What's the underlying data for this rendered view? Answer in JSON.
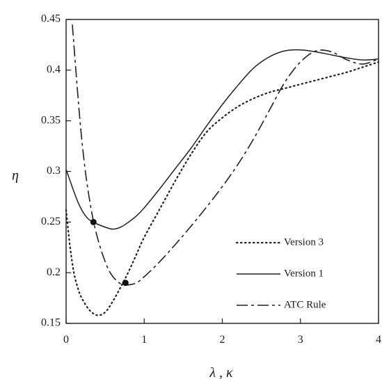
{
  "chart_data": {
    "type": "line",
    "title": "",
    "xlabel": "λ , κ",
    "ylabel": "η",
    "xlim": [
      0,
      4
    ],
    "ylim": [
      0.15,
      0.45
    ],
    "xticks": [
      0,
      1,
      2,
      3,
      4
    ],
    "yticks": [
      0.15,
      0.2,
      0.25,
      0.3,
      0.35,
      0.4,
      0.45
    ],
    "xtick_labels": [
      "0",
      "1",
      "2",
      "3",
      "4"
    ],
    "ytick_labels": [
      "0.15",
      "0.2",
      "0.25",
      "0.3",
      "0.35",
      "0.4",
      "0.45"
    ],
    "grid": false,
    "legend_position": "bottom-right",
    "series": [
      {
        "name": "Version 3",
        "style": "dotted",
        "x": [
          0.0,
          0.05,
          0.1,
          0.15,
          0.2,
          0.3,
          0.4,
          0.5,
          0.6,
          0.7,
          0.8,
          0.9,
          1.0,
          1.2,
          1.4,
          1.6,
          1.8,
          2.0,
          2.2,
          2.4,
          2.6,
          2.8,
          3.0,
          3.2,
          3.4,
          3.6,
          3.8,
          4.0
        ],
        "values": [
          0.262,
          0.226,
          0.2,
          0.185,
          0.175,
          0.163,
          0.158,
          0.161,
          0.172,
          0.186,
          0.201,
          0.218,
          0.235,
          0.263,
          0.291,
          0.317,
          0.339,
          0.353,
          0.364,
          0.372,
          0.378,
          0.382,
          0.386,
          0.39,
          0.394,
          0.398,
          0.403,
          0.408
        ]
      },
      {
        "name": "Version 1",
        "style": "solid",
        "x": [
          0.0,
          0.05,
          0.1,
          0.15,
          0.2,
          0.25,
          0.3,
          0.35,
          0.4,
          0.5,
          0.6,
          0.7,
          0.8,
          0.9,
          1.0,
          1.2,
          1.4,
          1.6,
          1.8,
          2.0,
          2.2,
          2.4,
          2.6,
          2.8,
          3.0,
          3.2,
          3.4,
          3.6,
          3.8,
          4.0
        ],
        "values": [
          0.302,
          0.291,
          0.28,
          0.27,
          0.262,
          0.256,
          0.252,
          0.25,
          0.248,
          0.245,
          0.243,
          0.245,
          0.25,
          0.256,
          0.264,
          0.283,
          0.303,
          0.323,
          0.345,
          0.366,
          0.385,
          0.402,
          0.413,
          0.419,
          0.42,
          0.418,
          0.415,
          0.412,
          0.41,
          0.411
        ]
      },
      {
        "name": "ATC Rule",
        "style": "dashed",
        "x": [
          0.08,
          0.12,
          0.16,
          0.2,
          0.25,
          0.3,
          0.35,
          0.4,
          0.45,
          0.5,
          0.55,
          0.6,
          0.65,
          0.7,
          0.75,
          0.8,
          0.9,
          1.0,
          1.2,
          1.4,
          1.6,
          1.8,
          2.0,
          2.2,
          2.4,
          2.6,
          2.8,
          3.0,
          3.2,
          3.4,
          3.6,
          3.8,
          4.0
        ],
        "values": [
          0.445,
          0.405,
          0.366,
          0.332,
          0.298,
          0.272,
          0.251,
          0.235,
          0.222,
          0.211,
          0.202,
          0.196,
          0.192,
          0.189,
          0.188,
          0.188,
          0.19,
          0.196,
          0.211,
          0.228,
          0.246,
          0.265,
          0.285,
          0.307,
          0.332,
          0.36,
          0.388,
          0.408,
          0.419,
          0.418,
          0.41,
          0.406,
          0.411
        ]
      }
    ],
    "markers": [
      {
        "x": 0.35,
        "y": 0.25
      },
      {
        "x": 0.76,
        "y": 0.19
      }
    ]
  }
}
